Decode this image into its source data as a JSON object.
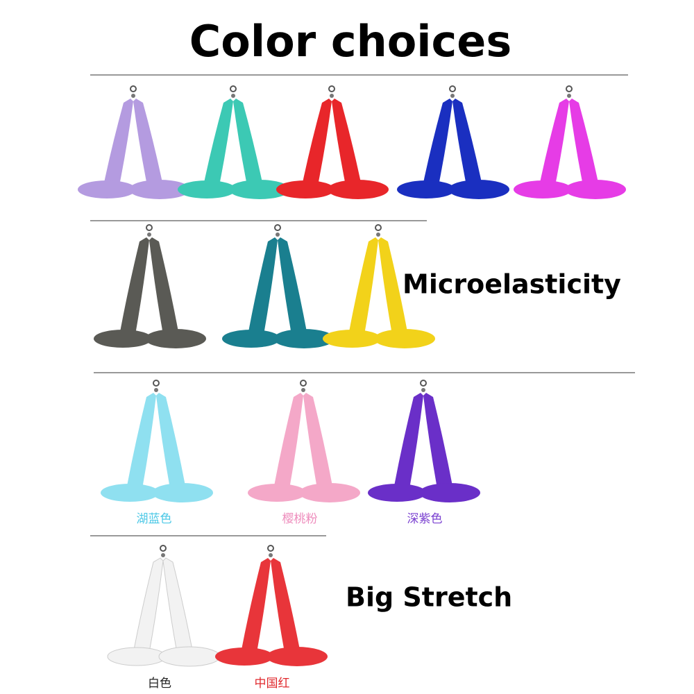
{
  "header": {
    "title": "Color choices"
  },
  "features": {
    "elasticity": "Microelasticity",
    "stretch": "Big Stretch"
  },
  "captions": [
    "湖蓝色",
    "樱桃粉",
    "深紫色",
    "白色",
    "中国红"
  ]
}
